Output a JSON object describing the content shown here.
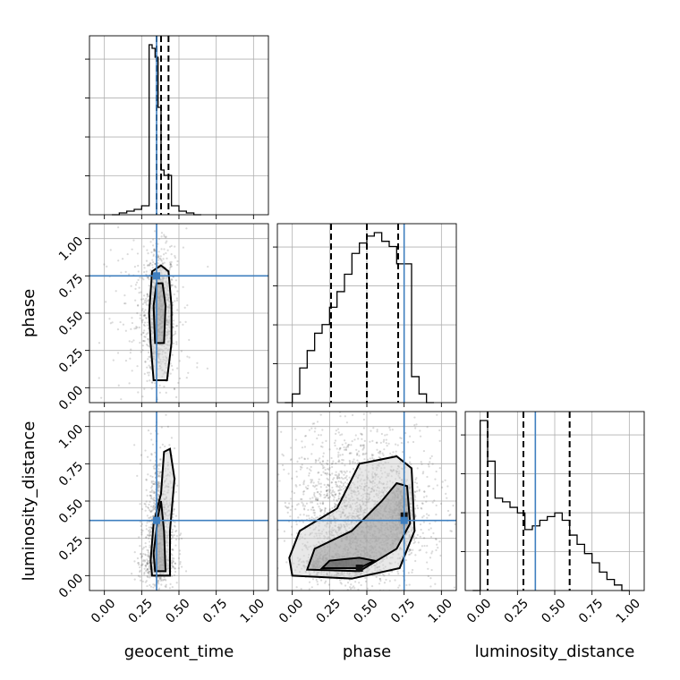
{
  "colors": {
    "truth": "#3f7fbf",
    "grid": "#b0b0b0",
    "line": "#000000"
  },
  "chart_data": {
    "type": "corner",
    "parameters": [
      "geocent_time",
      "phase",
      "luminosity_distance"
    ],
    "range": [
      -0.1,
      1.1
    ],
    "ticks": [
      0.0,
      0.25,
      0.5,
      0.75,
      1.0
    ],
    "tick_labels": [
      "0.00",
      "0.25",
      "0.50",
      "0.75",
      "1.00"
    ],
    "grid": true,
    "truths": {
      "geocent_time": 0.35,
      "phase": 0.75,
      "luminosity_distance": 0.37
    },
    "quantiles": {
      "geocent_time": [
        0.35,
        0.38,
        0.43
      ],
      "phase": [
        0.26,
        0.5,
        0.71
      ],
      "luminosity_distance": [
        0.05,
        0.29,
        0.6
      ]
    },
    "histograms": {
      "geocent_time": {
        "bins": [
          0.05,
          0.1,
          0.15,
          0.2,
          0.25,
          0.3,
          0.32,
          0.34,
          0.36,
          0.38,
          0.4,
          0.45,
          0.5,
          0.55,
          0.6,
          0.65
        ],
        "counts": [
          0.0,
          0.01,
          0.02,
          0.03,
          0.05,
          0.95,
          0.93,
          0.88,
          0.6,
          0.25,
          0.22,
          0.05,
          0.02,
          0.01,
          0.0
        ]
      },
      "phase": {
        "bins": [
          -0.05,
          0.0,
          0.05,
          0.1,
          0.15,
          0.2,
          0.25,
          0.3,
          0.35,
          0.4,
          0.45,
          0.5,
          0.55,
          0.6,
          0.65,
          0.7,
          0.75,
          0.8,
          0.85,
          0.9,
          0.95
        ],
        "counts": [
          0.0,
          0.05,
          0.2,
          0.3,
          0.4,
          0.45,
          0.55,
          0.64,
          0.74,
          0.86,
          0.92,
          0.96,
          0.98,
          0.93,
          0.9,
          0.8,
          0.8,
          0.15,
          0.05,
          0.0
        ]
      },
      "luminosity_distance": {
        "bins": [
          -0.05,
          0.0,
          0.05,
          0.1,
          0.15,
          0.2,
          0.25,
          0.3,
          0.35,
          0.4,
          0.45,
          0.5,
          0.55,
          0.6,
          0.65,
          0.7,
          0.75,
          0.8,
          0.85,
          0.9,
          0.95,
          1.0
        ],
        "counts": [
          0.0,
          0.92,
          0.7,
          0.5,
          0.48,
          0.45,
          0.42,
          0.33,
          0.35,
          0.38,
          0.4,
          0.42,
          0.38,
          0.3,
          0.25,
          0.2,
          0.15,
          0.1,
          0.06,
          0.03,
          0.0
        ]
      }
    },
    "pairs": [
      {
        "x": "geocent_time",
        "y": "phase",
        "clouds": [
          {
            "cx": 0.37,
            "cy": 0.5,
            "sx": 0.05,
            "sy": 0.22,
            "n": 900
          },
          {
            "cx": 0.3,
            "cy": 0.45,
            "sx": 0.15,
            "sy": 0.3,
            "n": 200
          }
        ],
        "contours": [
          [
            [
              0.33,
              0.05
            ],
            [
              0.42,
              0.05
            ],
            [
              0.45,
              0.3
            ],
            [
              0.45,
              0.55
            ],
            [
              0.43,
              0.78
            ],
            [
              0.38,
              0.82
            ],
            [
              0.32,
              0.78
            ],
            [
              0.3,
              0.5
            ],
            [
              0.31,
              0.3
            ]
          ],
          [
            [
              0.34,
              0.3
            ],
            [
              0.4,
              0.3
            ],
            [
              0.41,
              0.55
            ],
            [
              0.39,
              0.7
            ],
            [
              0.35,
              0.7
            ],
            [
              0.33,
              0.55
            ]
          ]
        ]
      },
      {
        "x": "geocent_time",
        "y": "luminosity_distance",
        "clouds": [
          {
            "cx": 0.37,
            "cy": 0.35,
            "sx": 0.05,
            "sy": 0.25,
            "n": 800
          },
          {
            "cx": 0.35,
            "cy": 0.08,
            "sx": 0.06,
            "sy": 0.05,
            "n": 300
          }
        ],
        "contours": [
          [
            [
              0.32,
              0.0
            ],
            [
              0.44,
              0.0
            ],
            [
              0.44,
              0.3
            ],
            [
              0.47,
              0.65
            ],
            [
              0.44,
              0.85
            ],
            [
              0.4,
              0.83
            ],
            [
              0.38,
              0.55
            ],
            [
              0.33,
              0.35
            ],
            [
              0.31,
              0.1
            ]
          ],
          [
            [
              0.34,
              0.03
            ],
            [
              0.41,
              0.03
            ],
            [
              0.4,
              0.3
            ],
            [
              0.38,
              0.5
            ],
            [
              0.36,
              0.4
            ],
            [
              0.33,
              0.15
            ]
          ]
        ]
      },
      {
        "x": "phase",
        "y": "luminosity_distance",
        "clouds": [
          {
            "cx": 0.45,
            "cy": 0.3,
            "sx": 0.2,
            "sy": 0.22,
            "n": 1400
          },
          {
            "cx": 0.3,
            "cy": 0.07,
            "sx": 0.12,
            "sy": 0.04,
            "n": 500
          },
          {
            "cx": 0.74,
            "cy": 0.42,
            "sx": 0.04,
            "sy": 0.1,
            "n": 400
          },
          {
            "cx": 0.45,
            "cy": 0.55,
            "sx": 0.28,
            "sy": 0.25,
            "n": 900
          }
        ],
        "contours": [
          [
            [
              0.0,
              0.0
            ],
            [
              0.4,
              -0.02
            ],
            [
              0.72,
              0.05
            ],
            [
              0.82,
              0.3
            ],
            [
              0.8,
              0.72
            ],
            [
              0.7,
              0.8
            ],
            [
              0.45,
              0.75
            ],
            [
              0.3,
              0.45
            ],
            [
              0.05,
              0.3
            ],
            [
              -0.02,
              0.12
            ]
          ],
          [
            [
              0.1,
              0.04
            ],
            [
              0.45,
              0.03
            ],
            [
              0.7,
              0.18
            ],
            [
              0.79,
              0.35
            ],
            [
              0.77,
              0.6
            ],
            [
              0.7,
              0.62
            ],
            [
              0.6,
              0.5
            ],
            [
              0.4,
              0.3
            ],
            [
              0.15,
              0.18
            ]
          ],
          [
            [
              0.2,
              0.05
            ],
            [
              0.45,
              0.05
            ],
            [
              0.55,
              0.1
            ],
            [
              0.45,
              0.12
            ],
            [
              0.25,
              0.1
            ]
          ]
        ],
        "dense": [
          [
            0.45,
            0.05
          ],
          [
            0.75,
            0.4
          ]
        ]
      }
    ]
  }
}
